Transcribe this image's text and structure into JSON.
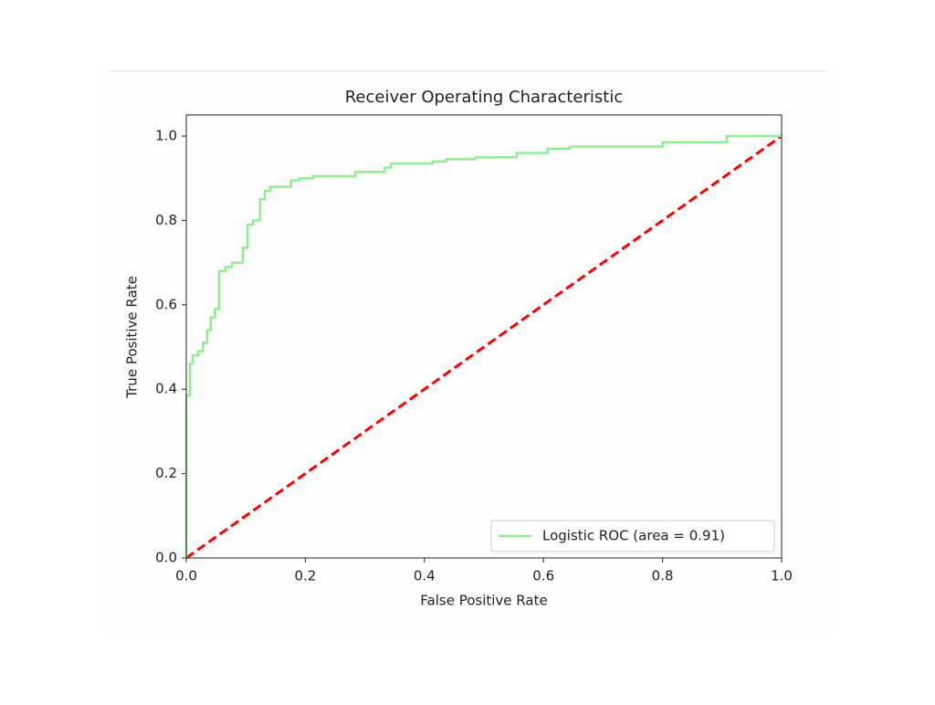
{
  "chart_data": {
    "type": "line",
    "title": "Receiver Operating Characteristic",
    "x_label": "False Positive Rate",
    "y_label": "True Positive Rate",
    "xlim": [
      0,
      1
    ],
    "ylim": [
      0,
      1.05
    ],
    "xticks": [
      {
        "value": 0,
        "label": "0.0"
      },
      0.2,
      0.4,
      0.6,
      0.8,
      {
        "value": 1,
        "label": "1.0"
      }
    ],
    "yticks": [
      {
        "value": 0,
        "label": "0.0"
      },
      0.2,
      0.4,
      0.6,
      0.8,
      {
        "value": 1,
        "label": "1.0"
      }
    ],
    "legend": "lower right",
    "series": [
      {
        "name": "Logistic ROC (area = 0.91)",
        "color": "#90ee90",
        "style": "solid",
        "x": [
          0,
          0,
          0.006,
          0.006,
          0.011,
          0.011,
          0.02,
          0.02,
          0.028,
          0.028,
          0.035,
          0.035,
          0.041,
          0.041,
          0.048,
          0.048,
          0.055,
          0.055,
          0.066,
          0.066,
          0.077,
          0.077,
          0.095,
          0.095,
          0.103,
          0.103,
          0.112,
          0.112,
          0.124,
          0.124,
          0.132,
          0.132,
          0.141,
          0.141,
          0.176,
          0.176,
          0.19,
          0.19,
          0.213,
          0.213,
          0.284,
          0.284,
          0.333,
          0.333,
          0.344,
          0.344,
          0.414,
          0.414,
          0.437,
          0.437,
          0.486,
          0.486,
          0.555,
          0.555,
          0.607,
          0.607,
          0.644,
          0.644,
          0.8,
          0.8,
          0.908,
          0.908,
          1
        ],
        "values": [
          0,
          0.385,
          0.385,
          0.461,
          0.461,
          0.48,
          0.48,
          0.49,
          0.49,
          0.51,
          0.51,
          0.54,
          0.54,
          0.57,
          0.57,
          0.59,
          0.59,
          0.68,
          0.68,
          0.69,
          0.69,
          0.7,
          0.7,
          0.735,
          0.735,
          0.79,
          0.79,
          0.8,
          0.8,
          0.85,
          0.85,
          0.87,
          0.87,
          0.88,
          0.88,
          0.895,
          0.895,
          0.9,
          0.9,
          0.905,
          0.905,
          0.915,
          0.915,
          0.925,
          0.925,
          0.935,
          0.935,
          0.94,
          0.94,
          0.945,
          0.945,
          0.95,
          0.95,
          0.96,
          0.96,
          0.97,
          0.97,
          0.975,
          0.975,
          0.985,
          0.985,
          1,
          1
        ]
      },
      {
        "color": "#ff0000",
        "style": "dashed",
        "x": [
          0,
          1
        ],
        "values": [
          0,
          1
        ]
      }
    ]
  }
}
